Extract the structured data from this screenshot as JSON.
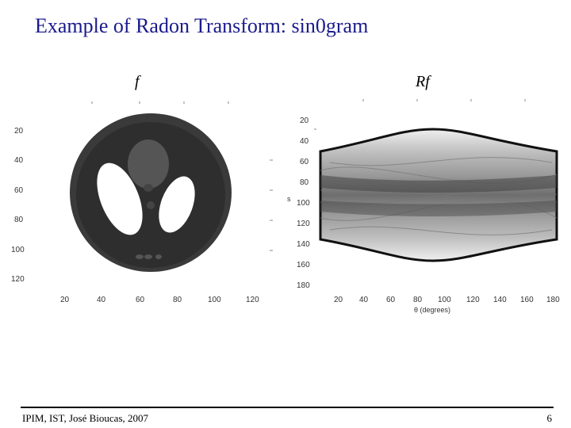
{
  "slide": {
    "title": "Example of Radon Transform: sin0gram",
    "footer_text": "IPIM, IST, José Bioucas, 2007",
    "page_number": "6"
  },
  "left_plot": {
    "title": "f",
    "y_ticks": [
      "20",
      "40",
      "60",
      "80",
      "100",
      "120"
    ],
    "x_ticks": [
      "20",
      "40",
      "60",
      "80",
      "100",
      "120"
    ]
  },
  "right_plot": {
    "title": "Rf",
    "ylabel": "s",
    "xlabel": "θ (degrees)",
    "y_ticks": [
      "20",
      "40",
      "60",
      "80",
      "100",
      "120",
      "140",
      "160",
      "180"
    ],
    "x_ticks": [
      "20",
      "40",
      "60",
      "80",
      "100",
      "120",
      "140",
      "160",
      "180"
    ]
  },
  "colors": {
    "title": "#1a1a8c",
    "phantom_outer": "#3a3a3a",
    "phantom_inner": "#2d2d2d",
    "ellipse_bright": "#ffffff"
  }
}
